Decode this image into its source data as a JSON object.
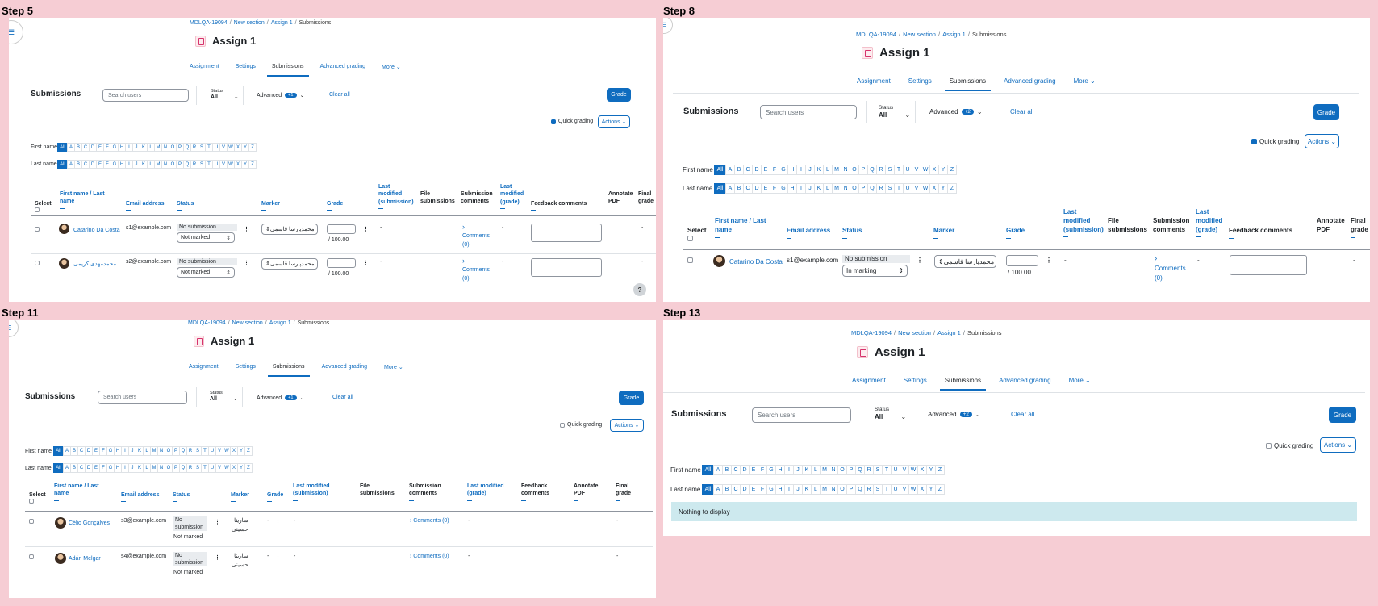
{
  "panels": {
    "p1": {
      "step": "Step 5",
      "breadcrumb": [
        "MDLQA-19094",
        "New section",
        "Assign 1",
        "Submissions"
      ],
      "title": "Assign 1",
      "tabs": [
        "Assignment",
        "Settings",
        "Submissions",
        "Advanced grading",
        "More ⌄"
      ],
      "bar_title": "Submissions",
      "search_placeholder": "Search users",
      "status_label": "Status",
      "status_value": "All",
      "advanced_label": "Advanced",
      "advanced_badge": "+1",
      "clear_all": "Clear all",
      "grade_button": "Grade",
      "quick_grading": "Quick grading",
      "actions": "Actions ⌄",
      "first_name_label": "First name",
      "last_name_label": "Last name",
      "headers": {
        "select": "Select",
        "name": "First name / Last name",
        "email": "Email address",
        "status": "Status",
        "marker": "Marker",
        "grade": "Grade",
        "last_modified_submission": "Last modified (submission)",
        "file_submissions": "File submissions",
        "submission_comments": "Submission comments",
        "last_modified_grade": "Last modified (grade)",
        "feedback_comments": "Feedback comments",
        "annotate_pdf": "Annotate PDF",
        "final_grade": "Final grade"
      },
      "rows": [
        {
          "name": "Catarino Da Costa",
          "email": "s1@example.com",
          "status": "No submission",
          "marking": "Not marked",
          "marker": "محمدپارسا قاسمی",
          "grade_of": "/ 100.00",
          "last_mod": "-",
          "comments_arrow": "›",
          "comments": "Comments (0)",
          "last_mod_grade": "-",
          "final": "-"
        },
        {
          "name": "محمدمهدی کریمی",
          "email": "s2@example.com",
          "status": "No submission",
          "marking": "Not marked",
          "marker": "محمدپارسا قاسمی",
          "grade_of": "/ 100.00",
          "last_mod": "-",
          "comments_arrow": "›",
          "comments": "Comments (0)",
          "last_mod_grade": "-",
          "final": "-"
        }
      ],
      "help": "?"
    },
    "p2": {
      "step": "Step 8",
      "breadcrumb": [
        "MDLQA-19094",
        "New section",
        "Assign 1",
        "Submissions"
      ],
      "title": "Assign 1",
      "tabs": [
        "Assignment",
        "Settings",
        "Submissions",
        "Advanced grading",
        "More ⌄"
      ],
      "bar_title": "Submissions",
      "search_placeholder": "Search users",
      "status_label": "Status",
      "status_value": "All",
      "advanced_label": "Advanced",
      "advanced_badge": "+2",
      "clear_all": "Clear all",
      "grade_button": "Grade",
      "quick_grading": "Quick grading",
      "actions": "Actions ⌄",
      "first_name_label": "First name",
      "last_name_label": "Last name",
      "headers": {
        "select": "Select",
        "name": "First name / Last name",
        "email": "Email address",
        "status": "Status",
        "marker": "Marker",
        "grade": "Grade",
        "last_modified_submission": "Last modified (submission)",
        "file_submissions": "File submissions",
        "submission_comments": "Submission comments",
        "last_modified_grade": "Last modified (grade)",
        "feedback_comments": "Feedback comments",
        "annotate_pdf": "Annotate PDF",
        "final_grade": "Final grade"
      },
      "rows": [
        {
          "name": "Catarino Da Costa",
          "email": "s1@example.com",
          "status": "No submission",
          "marking": "In marking",
          "marker": "محمدپارسا قاسمی",
          "grade_of": "/ 100.00",
          "last_mod": "-",
          "comments_arrow": "›",
          "comments": "Comments (0)",
          "last_mod_grade": "-",
          "final": "-"
        }
      ]
    },
    "p3": {
      "step": "Step 11",
      "breadcrumb": [
        "MDLQA-19094",
        "New section",
        "Assign 1",
        "Submissions"
      ],
      "title": "Assign 1",
      "tabs": [
        "Assignment",
        "Settings",
        "Submissions",
        "Advanced grading",
        "More ⌄"
      ],
      "bar_title": "Submissions",
      "search_placeholder": "Search users",
      "status_label": "Status",
      "status_value": "All",
      "advanced_label": "Advanced",
      "advanced_badge": "+1",
      "clear_all": "Clear all",
      "grade_button": "Grade",
      "quick_grading": "Quick grading",
      "actions": "Actions ⌄",
      "first_name_label": "First name",
      "last_name_label": "Last name",
      "headers": {
        "select": "Select",
        "name": "First name / Last name",
        "email": "Email address",
        "status": "Status",
        "marker": "Marker",
        "grade": "Grade",
        "last_modified_submission": "Last modified (submission)",
        "file_submissions": "File submissions",
        "submission_comments": "Submission comments",
        "last_modified_grade": "Last modified (grade)",
        "feedback_comments": "Feedback comments",
        "annotate_pdf": "Annotate PDF",
        "final_grade": "Final grade"
      },
      "rows": [
        {
          "name": "Célio Gonçalves",
          "email": "s3@example.com",
          "status_a": "No",
          "status_b": "submission",
          "marking": "Not marked",
          "marker_a": "سارینا",
          "marker_b": "حسینی",
          "grade": "-",
          "last_mod": "-",
          "comments": "Comments (0)",
          "last_mod_grade": "-",
          "final": "-"
        },
        {
          "name": "Adán Melgar",
          "email": "s4@example.com",
          "status_a": "No",
          "status_b": "submission",
          "marking": "Not marked",
          "marker_a": "سارینا",
          "marker_b": "حسینی",
          "grade": "-",
          "last_mod": "-",
          "comments": "Comments (0)",
          "last_mod_grade": "-",
          "final": "-"
        }
      ]
    },
    "p4": {
      "step": "Step 13",
      "breadcrumb": [
        "MDLQA-19094",
        "New section",
        "Assign 1",
        "Submissions"
      ],
      "title": "Assign 1",
      "tabs": [
        "Assignment",
        "Settings",
        "Submissions",
        "Advanced grading",
        "More ⌄"
      ],
      "bar_title": "Submissions",
      "search_placeholder": "Search users",
      "status_label": "Status",
      "status_value": "All",
      "advanced_label": "Advanced",
      "advanced_badge": "+2",
      "clear_all": "Clear all",
      "grade_button": "Grade",
      "quick_grading": "Quick grading",
      "actions": "Actions ⌄",
      "first_name_label": "First name",
      "last_name_label": "Last name",
      "empty_message": "Nothing to display"
    }
  },
  "letters": [
    "All",
    "A",
    "B",
    "C",
    "D",
    "E",
    "F",
    "G",
    "H",
    "I",
    "J",
    "K",
    "L",
    "M",
    "N",
    "O",
    "P",
    "Q",
    "R",
    "S",
    "T",
    "U",
    "V",
    "W",
    "X",
    "Y",
    "Z"
  ],
  "colors": {
    "accent": "#0f6cbf",
    "background": "#f6cdd4",
    "empty_info": "#cde9ee"
  },
  "icons": {
    "assign": "assignment-icon",
    "kebab": "kebab-icon",
    "chevron": "chevron-down-icon",
    "drawer": "drawer-toggle-icon"
  }
}
